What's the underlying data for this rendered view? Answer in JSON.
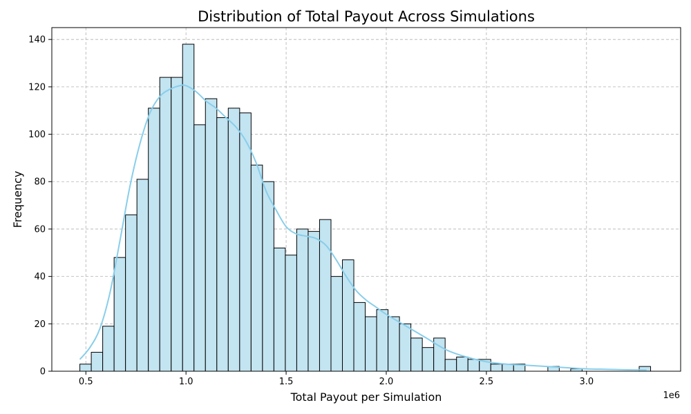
{
  "chart_data": {
    "type": "bar",
    "title": "Distribution of Total Payout Across Simulations",
    "xlabel": "Total Payout per Simulation",
    "ylabel": "Frequency",
    "x_offset_label": "1e6",
    "xlim": [
      0.33,
      3.47
    ],
    "ylim": [
      0,
      145
    ],
    "x_ticks": [
      0.5,
      1.0,
      1.5,
      2.0,
      2.5,
      3.0
    ],
    "x_tick_labels": [
      "0.5",
      "1.0",
      "1.5",
      "2.0",
      "2.5",
      "3.0"
    ],
    "y_ticks": [
      0,
      20,
      40,
      60,
      80,
      100,
      120,
      140
    ],
    "y_tick_labels": [
      "0",
      "20",
      "40",
      "60",
      "80",
      "100",
      "120",
      "140"
    ],
    "grid": true,
    "bin_start": 0.47,
    "bin_width": 0.057,
    "values": [
      3,
      8,
      19,
      48,
      66,
      81,
      111,
      124,
      124,
      138,
      104,
      115,
      107,
      111,
      109,
      87,
      80,
      52,
      49,
      60,
      59,
      64,
      40,
      47,
      29,
      23,
      26,
      23,
      20,
      14,
      10,
      14,
      5,
      6,
      5,
      5,
      3,
      3,
      3,
      0,
      0,
      2,
      0,
      1,
      0,
      0,
      0,
      0,
      0,
      2
    ],
    "kde": {
      "x": [
        0.47,
        0.52,
        0.57,
        0.62,
        0.67,
        0.72,
        0.77,
        0.82,
        0.87,
        0.92,
        0.97,
        1.0,
        1.05,
        1.1,
        1.15,
        1.2,
        1.25,
        1.3,
        1.35,
        1.4,
        1.45,
        1.5,
        1.55,
        1.6,
        1.65,
        1.7,
        1.75,
        1.8,
        1.85,
        1.9,
        1.95,
        2.0,
        2.1,
        2.2,
        2.3,
        2.4,
        2.5,
        2.6,
        2.7,
        2.8,
        2.9,
        3.0,
        3.1,
        3.2,
        3.3
      ],
      "y": [
        5,
        10,
        18,
        33,
        55,
        78,
        96,
        109,
        116,
        119,
        120.5,
        120.5,
        118,
        114,
        111,
        107,
        103,
        97,
        88,
        76,
        68,
        61,
        58,
        57,
        56,
        53,
        47,
        40,
        34,
        30,
        27,
        24,
        19,
        14,
        9,
        6,
        4,
        3,
        2.5,
        2,
        1.5,
        1,
        0.8,
        0.6,
        0.5
      ]
    },
    "colors": {
      "bar_fill": "#c3e4f1",
      "bar_edge": "#000000",
      "kde_line": "#87ceeb"
    }
  }
}
